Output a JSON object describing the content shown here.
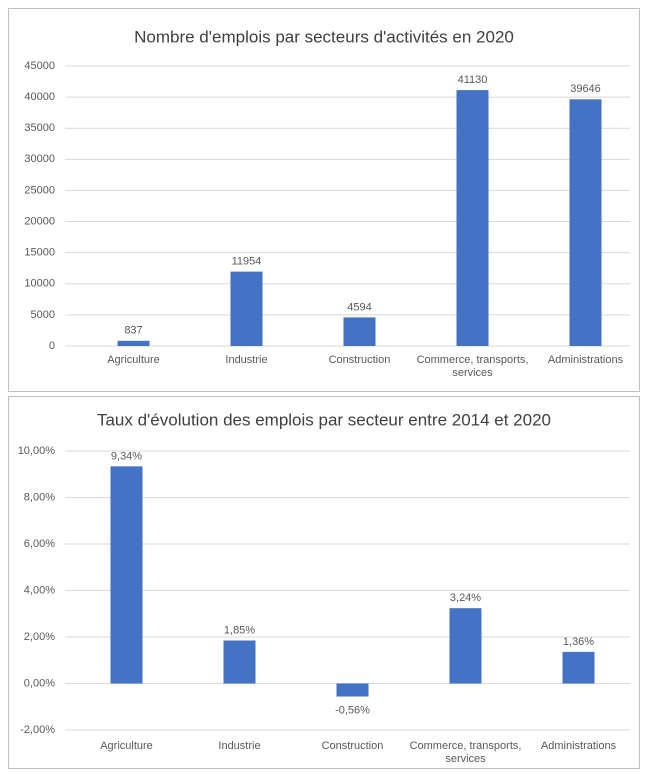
{
  "chart_data": [
    {
      "type": "bar",
      "title": "Nombre d'emplois par secteurs d'activités en 2020",
      "categories": [
        "Agriculture",
        "Industrie",
        "Construction",
        "Commerce, transports, services",
        "Administrations"
      ],
      "values": [
        837,
        11954,
        4594,
        41130,
        39646
      ],
      "color": "#4472c4",
      "ylim": [
        0,
        45000
      ],
      "yticks": [
        0,
        5000,
        10000,
        15000,
        20000,
        25000,
        30000,
        35000,
        40000,
        45000
      ],
      "grid": true
    },
    {
      "type": "bar",
      "title": "Taux d'évolution des emplois par secteur entre 2014 et 2020",
      "categories": [
        "Agriculture",
        "Industrie",
        "Construction",
        "Commerce, transports, services",
        "Administrations"
      ],
      "values": [
        9.34,
        1.85,
        -0.56,
        3.24,
        1.36
      ],
      "value_labels": [
        "9,34%",
        "1,85%",
        "-0,56%",
        "3,24%",
        "1,36%"
      ],
      "color": "#4472c4",
      "ylim": [
        -2,
        10
      ],
      "yticks": [
        {
          "value": -2,
          "label": "-2,00%"
        },
        {
          "value": 0,
          "label": "0,00%"
        },
        {
          "value": 2,
          "label": "2,00%"
        },
        {
          "value": 4,
          "label": "4,00%"
        },
        {
          "value": 6,
          "label": "6,00%"
        },
        {
          "value": 8,
          "label": "8,00%"
        },
        {
          "value": 10,
          "label": "10,00%"
        }
      ],
      "grid": true
    }
  ]
}
